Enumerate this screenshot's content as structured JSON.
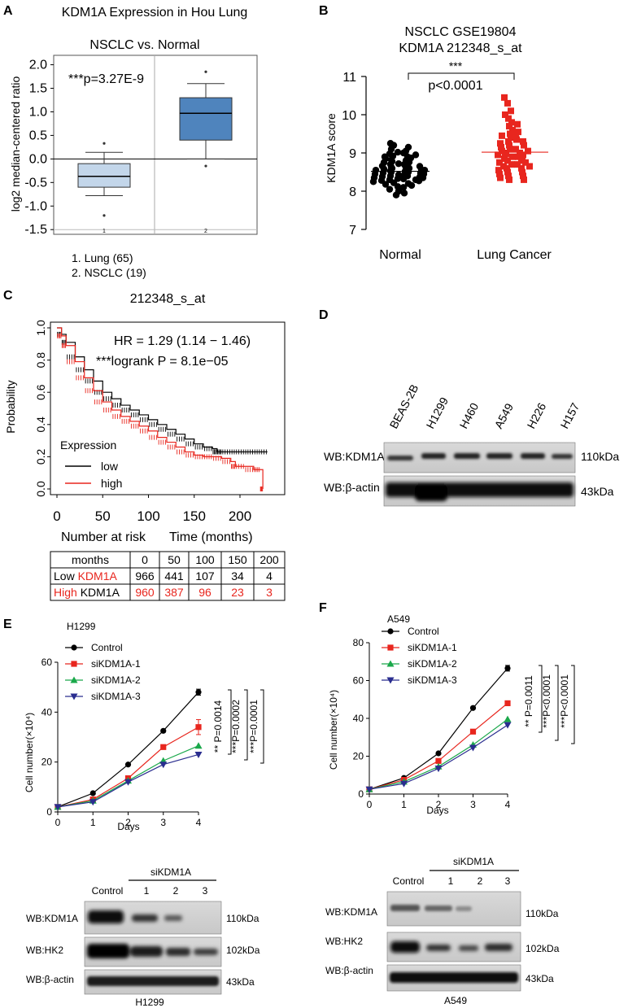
{
  "colors": {
    "red": "#e8261e",
    "black": "#000000",
    "box_light": "#c3d6ea",
    "box_dark": "#4f84bd",
    "green": "#1aa84a",
    "navy": "#2a2d8f"
  },
  "panel_a": {
    "letter": "A",
    "title": "KDM1A Expression in Hou Lung",
    "subtitle": "NSCLC vs. Normal",
    "ylabel": "log2 median-centered ratio",
    "pvalue": "***p=3.27E-9",
    "legend": [
      "1. Lung (65)",
      "2. NSCLC (19)"
    ],
    "x_ticks": [
      "1",
      "2"
    ]
  },
  "panel_b": {
    "letter": "B",
    "title_line1": "NSCLC GSE19804",
    "title_line2": "KDM1A  212348_s_at",
    "ylabel": "KDM1A score",
    "sig": "***",
    "pvalue": "p<0.0001",
    "groups": [
      "Normal",
      "Lung Cancer"
    ]
  },
  "panel_c": {
    "letter": "C",
    "title": "212348_s_at",
    "ylabel": "Probability",
    "hr": "HR = 1.29 (1.14 − 1.46)",
    "logrank": "***logrank P = 8.1e−05",
    "legend_title": "Expression",
    "legend_low": "low",
    "legend_high": "high",
    "xlabel_left": "Number at risk",
    "xlabel_right": "Time (months)",
    "risk_table": {
      "header": [
        "months",
        "0",
        "50",
        "100",
        "150",
        "200"
      ],
      "low_label_a": "Low ",
      "low_label_b": "KDM1A",
      "low_values": [
        "966",
        "441",
        "107",
        "34",
        "4"
      ],
      "high_label_a": "High ",
      "high_label_b": "KDM1A",
      "high_values": [
        "960",
        "387",
        "96",
        "23",
        "3"
      ]
    }
  },
  "panel_d": {
    "letter": "D",
    "lanes": [
      "BEAS-2B",
      "H1299",
      "H460",
      "A549",
      "H226",
      "H157"
    ],
    "rows": [
      {
        "label": "WB:KDM1A",
        "size": "110kDa"
      },
      {
        "label": "WB:β-actin",
        "size": "43kDa"
      }
    ]
  },
  "panel_e": {
    "letter": "E",
    "cell_line": "H1299",
    "ylabel": "Cell number(×10⁴)",
    "xlabel": "Days",
    "legend": [
      "Control",
      "siKDM1A-1",
      "siKDM1A-2",
      "siKDM1A-3"
    ],
    "pvalues": [
      "** P=0.0014",
      "***P=0.0002",
      "***P=0.0001"
    ],
    "blot_group": "siKDM1A",
    "blot_lanes": [
      "Control",
      "1",
      "2",
      "3"
    ],
    "blot_rows": [
      {
        "label": "WB:KDM1A",
        "size": "110kDa"
      },
      {
        "label": "WB:HK2",
        "size": "102kDa"
      },
      {
        "label": "WB:β-actin",
        "size": "43kDa"
      }
    ],
    "blot_caption": "H1299"
  },
  "panel_f": {
    "letter": "F",
    "cell_line": "A549",
    "ylabel": "Cell number(×10⁴)",
    "xlabel": "Days",
    "legend": [
      "Control",
      "siKDM1A-1",
      "siKDM1A-2",
      "siKDM1A-3"
    ],
    "pvalues": [
      "** P=0.0011",
      "***P<0.0001",
      "***P<0.0001"
    ],
    "blot_group": "siKDM1A",
    "blot_lanes": [
      "Control",
      "1",
      "2",
      "3"
    ],
    "blot_rows": [
      {
        "label": "WB:KDM1A",
        "size": "110kDa"
      },
      {
        "label": "WB:HK2",
        "size": "102kDa"
      },
      {
        "label": "WB:β-actin",
        "size": "43kDa"
      }
    ],
    "blot_caption": "A549"
  },
  "chart_data": [
    {
      "id": "A",
      "type": "box",
      "title": "NSCLC vs. Normal",
      "ylabel": "log2 median-centered ratio",
      "ylim": [
        -1.6,
        2.2
      ],
      "yticks": [
        -1.5,
        -1.0,
        -0.5,
        0.0,
        0.5,
        1.0,
        1.5,
        2.0
      ],
      "categories": [
        "1",
        "2"
      ],
      "boxes": [
        {
          "min": -0.78,
          "q1": -0.6,
          "median": -0.37,
          "q3": -0.1,
          "max": 0.14,
          "outliers": [
            0.33,
            -1.2
          ]
        },
        {
          "min": 0.0,
          "q1": 0.4,
          "median": 0.97,
          "q3": 1.3,
          "max": 1.6,
          "outliers": [
            1.85,
            -0.15
          ]
        }
      ]
    },
    {
      "id": "B",
      "type": "scatter",
      "ylabel": "KDM1A score",
      "ylim": [
        7,
        11
      ],
      "yticks": [
        7,
        8,
        9,
        10,
        11
      ],
      "categories": [
        "Normal",
        "Lung Cancer"
      ],
      "means": [
        8.52,
        9.02
      ],
      "normal_values": [
        9.25,
        9.2,
        9.15,
        9.1,
        9.05,
        9.02,
        9.0,
        8.98,
        8.95,
        8.92,
        8.9,
        8.9,
        8.87,
        8.85,
        8.82,
        8.8,
        8.78,
        8.76,
        8.75,
        8.72,
        8.7,
        8.7,
        8.68,
        8.66,
        8.65,
        8.63,
        8.62,
        8.6,
        8.6,
        8.58,
        8.56,
        8.55,
        8.55,
        8.53,
        8.52,
        8.5,
        8.5,
        8.48,
        8.47,
        8.45,
        8.45,
        8.43,
        8.42,
        8.4,
        8.4,
        8.38,
        8.37,
        8.35,
        8.35,
        8.33,
        8.32,
        8.3,
        8.3,
        8.28,
        8.27,
        8.25,
        8.22,
        8.2,
        8.18,
        8.15,
        8.12,
        8.1,
        8.05,
        8.0,
        7.95,
        7.9
      ],
      "cancer_values": [
        10.45,
        10.3,
        10.1,
        10.0,
        9.9,
        9.8,
        9.75,
        9.7,
        9.6,
        9.55,
        9.5,
        9.5,
        9.45,
        9.4,
        9.35,
        9.3,
        9.3,
        9.25,
        9.2,
        9.2,
        9.15,
        9.1,
        9.1,
        9.05,
        9.05,
        9.0,
        9.0,
        8.98,
        8.95,
        8.95,
        8.9,
        8.9,
        8.85,
        8.85,
        8.8,
        8.8,
        8.75,
        8.75,
        8.7,
        8.7,
        8.65,
        8.65,
        8.6,
        8.6,
        8.55,
        8.5,
        8.5,
        8.45,
        8.4,
        8.4,
        8.35,
        8.3,
        8.3
      ]
    },
    {
      "id": "C",
      "type": "line",
      "subtype": "kaplan-meier",
      "title": "212348_s_at",
      "ylabel": "Probability",
      "xlim": [
        0,
        240
      ],
      "ylim": [
        0,
        1
      ],
      "xticks": [
        0,
        50,
        100,
        150,
        200
      ],
      "yticks": [
        0.0,
        0.2,
        0.4,
        0.6,
        0.8,
        1.0
      ],
      "series": [
        {
          "name": "low",
          "color": "#000000",
          "x": [
            0,
            5,
            10,
            20,
            30,
            40,
            50,
            60,
            70,
            80,
            90,
            100,
            110,
            120,
            130,
            140,
            150,
            160,
            170,
            175,
            180,
            190,
            200,
            210,
            220,
            230
          ],
          "y": [
            1.0,
            0.96,
            0.91,
            0.82,
            0.74,
            0.67,
            0.6,
            0.56,
            0.52,
            0.49,
            0.46,
            0.43,
            0.4,
            0.37,
            0.34,
            0.31,
            0.28,
            0.26,
            0.25,
            0.23,
            0.23,
            0.23,
            0.23,
            0.23,
            0.23,
            0.23
          ]
        },
        {
          "name": "high",
          "color": "#e8261e",
          "x": [
            0,
            5,
            10,
            20,
            30,
            40,
            50,
            60,
            70,
            80,
            90,
            100,
            110,
            120,
            130,
            140,
            150,
            160,
            170,
            180,
            190,
            195,
            205,
            215,
            222,
            225
          ],
          "y": [
            1.0,
            0.95,
            0.89,
            0.79,
            0.69,
            0.61,
            0.54,
            0.49,
            0.45,
            0.42,
            0.39,
            0.36,
            0.32,
            0.29,
            0.26,
            0.23,
            0.21,
            0.2,
            0.2,
            0.19,
            0.17,
            0.14,
            0.14,
            0.12,
            0.12,
            0.0
          ]
        }
      ]
    },
    {
      "id": "E",
      "type": "line",
      "title": "H1299",
      "xlabel": "Days",
      "ylabel": "Cell number(×10⁴)",
      "xlim": [
        0,
        4
      ],
      "ylim": [
        0,
        60
      ],
      "x": [
        0,
        1,
        2,
        3,
        4
      ],
      "xticks": [
        0,
        1,
        2,
        3,
        4
      ],
      "yticks": [
        0,
        20,
        40,
        60
      ],
      "series": [
        {
          "name": "Control",
          "color": "#000000",
          "marker": "circle",
          "values": [
            2,
            7.5,
            19,
            32.5,
            48
          ],
          "err": [
            0,
            0,
            0,
            0,
            1.2
          ]
        },
        {
          "name": "siKDM1A-1",
          "color": "#e8261e",
          "marker": "square",
          "values": [
            2,
            5,
            13.5,
            26,
            34
          ],
          "err": [
            0,
            0,
            0,
            0,
            3
          ]
        },
        {
          "name": "siKDM1A-2",
          "color": "#1aa84a",
          "marker": "triangle-up",
          "values": [
            2,
            4.5,
            12.5,
            20.5,
            26.5
          ],
          "err": [
            0,
            0,
            0,
            0,
            0
          ]
        },
        {
          "name": "siKDM1A-3",
          "color": "#2a2d8f",
          "marker": "triangle-down",
          "values": [
            2,
            4,
            12,
            19,
            23
          ],
          "err": [
            0,
            0,
            0,
            0,
            0
          ]
        }
      ]
    },
    {
      "id": "F",
      "type": "line",
      "title": "A549",
      "xlabel": "Days",
      "ylabel": "Cell number(×10⁴)",
      "xlim": [
        0,
        4
      ],
      "ylim": [
        0,
        80
      ],
      "x": [
        0,
        1,
        2,
        3,
        4
      ],
      "xticks": [
        0,
        1,
        2,
        3,
        4
      ],
      "yticks": [
        0,
        20,
        40,
        60,
        80
      ],
      "series": [
        {
          "name": "Control",
          "color": "#000000",
          "marker": "circle",
          "values": [
            2.5,
            8.5,
            21.5,
            45.5,
            66.5
          ],
          "err": [
            0,
            0,
            0,
            0,
            1.5
          ]
        },
        {
          "name": "siKDM1A-1",
          "color": "#e8261e",
          "marker": "square",
          "values": [
            2.5,
            7.5,
            17.5,
            33,
            48
          ],
          "err": [
            0,
            0,
            0,
            0,
            1
          ]
        },
        {
          "name": "siKDM1A-2",
          "color": "#1aa84a",
          "marker": "triangle-up",
          "values": [
            2.5,
            6.5,
            14.5,
            26,
            39.5
          ],
          "err": [
            0,
            0,
            0,
            0,
            0
          ]
        },
        {
          "name": "siKDM1A-3",
          "color": "#2a2d8f",
          "marker": "triangle-down",
          "values": [
            2.5,
            5.5,
            13.5,
            24.5,
            36.5
          ],
          "err": [
            0,
            0,
            0,
            0,
            0
          ]
        }
      ]
    }
  ]
}
